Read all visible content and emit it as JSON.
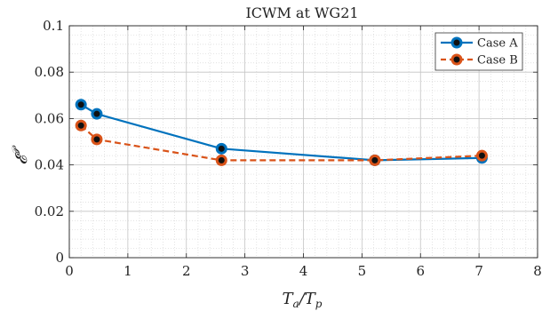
{
  "chart_data": {
    "type": "line",
    "title": "ICWM at WG21",
    "xlabel": "T_a/T_p",
    "ylabel": "𝓔^𝒫",
    "xlim": [
      0,
      8
    ],
    "ylim": [
      0,
      0.1
    ],
    "xticks": [
      "0",
      "1",
      "2",
      "3",
      "4",
      "5",
      "6",
      "7",
      "8"
    ],
    "yticks": [
      "0",
      "0.02",
      "0.04",
      "0.06",
      "0.08",
      "0.1"
    ],
    "grid": true,
    "minor_grid": true,
    "legend_position": "top-right",
    "series": [
      {
        "name": "Case A",
        "color": "#0072BD",
        "line_style": "solid",
        "marker": "circle",
        "x": [
          0.2,
          0.47,
          2.6,
          5.22,
          7.05
        ],
        "y": [
          0.066,
          0.062,
          0.047,
          0.042,
          0.043
        ]
      },
      {
        "name": "Case B",
        "color": "#D95319",
        "line_style": "dashed",
        "marker": "circle",
        "x": [
          0.2,
          0.47,
          2.6,
          5.22,
          7.05
        ],
        "y": [
          0.057,
          0.051,
          0.042,
          0.042,
          0.044
        ]
      }
    ]
  }
}
